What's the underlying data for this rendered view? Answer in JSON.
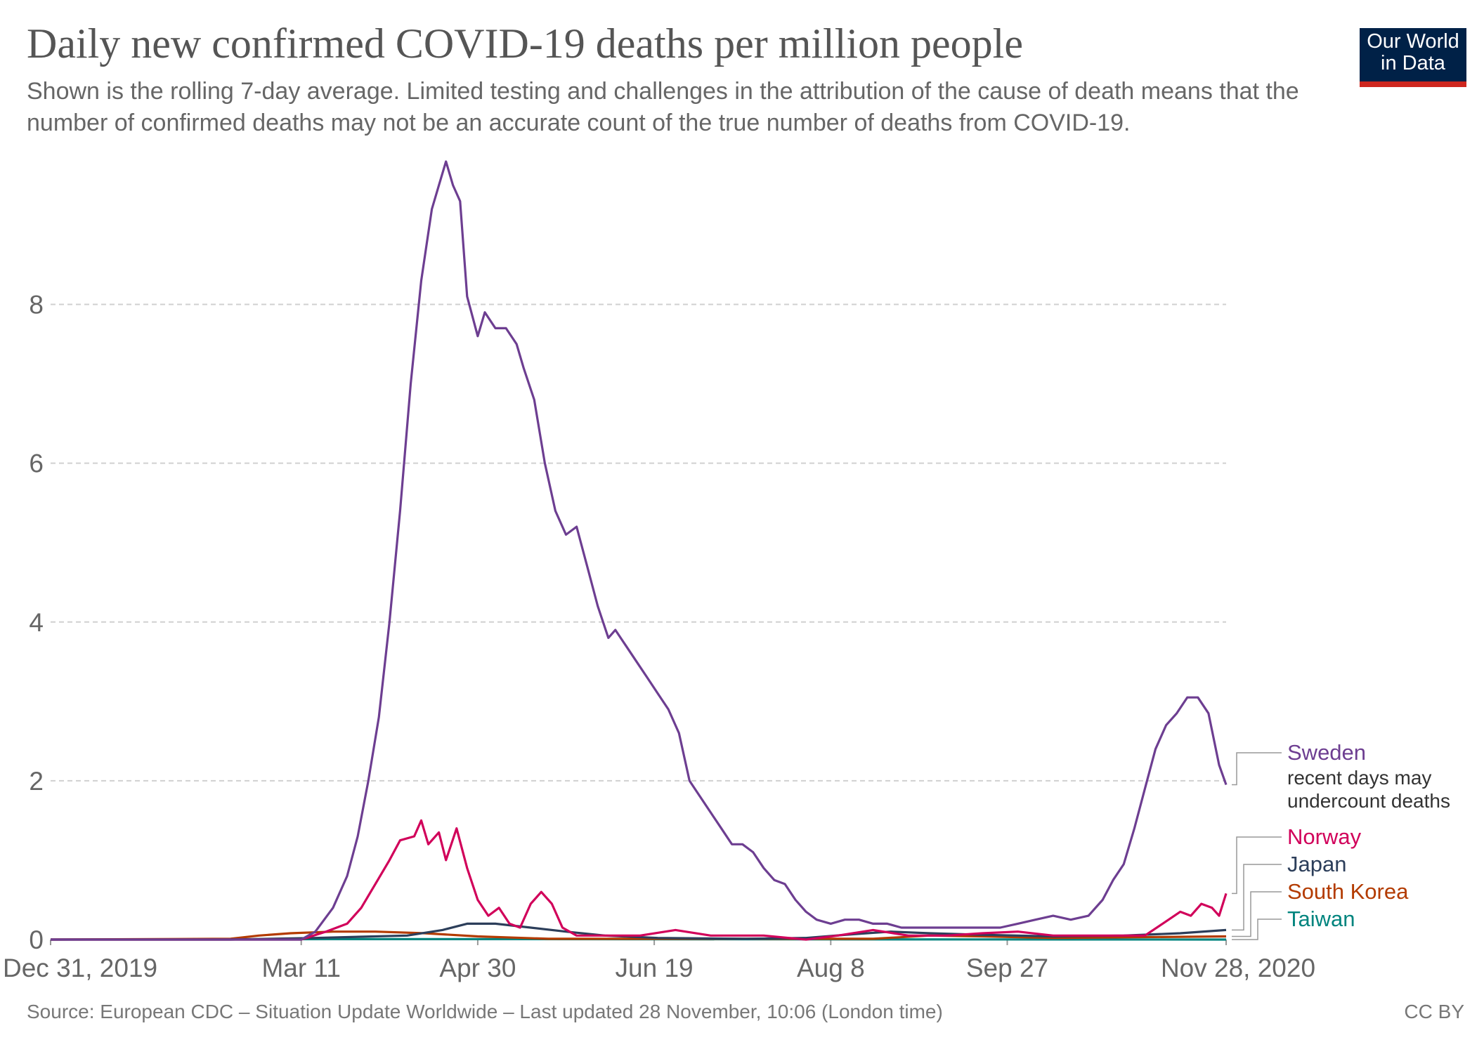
{
  "header": {
    "title": "Daily new confirmed COVID-19 deaths per million people",
    "subtitle": "Shown is the rolling 7-day average. Limited testing and challenges in the attribution of the cause of death means that the number of confirmed deaths may not be an accurate count of the true number of deaths from COVID-19.",
    "logo_line1": "Our World",
    "logo_line2": "in Data"
  },
  "footer": {
    "source": "Source: European CDC – Situation Update Worldwide – Last updated 28 November, 10:06 (London time)",
    "license": "CC BY"
  },
  "colors": {
    "Sweden": "#6d3e91",
    "Norway": "#d1005a",
    "Japan": "#2c3e5a",
    "South Korea": "#b33b00",
    "Taiwan": "#00847e",
    "grid": "#d0d0d0",
    "logo_bg": "#002147",
    "logo_bar": "#ce261e"
  },
  "chart_data": {
    "type": "line",
    "title": "Daily new confirmed COVID-19 deaths per million people",
    "xlabel": "",
    "ylabel": "",
    "x_range": [
      "2019-12-31",
      "2020-11-28"
    ],
    "ylim": [
      0,
      9.8
    ],
    "y_ticks": [
      0,
      2,
      4,
      6,
      8
    ],
    "x_tick_labels": [
      "Dec 31, 2019",
      "Mar 11",
      "Apr 30",
      "Jun 19",
      "Aug 8",
      "Sep 27",
      "Nov 28, 2020"
    ],
    "x_tick_dates": [
      "2019-12-31",
      "2020-03-11",
      "2020-04-30",
      "2020-06-19",
      "2020-08-08",
      "2020-09-27",
      "2020-11-28"
    ],
    "grid": true,
    "legend_placement": "right, line-end labels",
    "series": [
      {
        "name": "Sweden",
        "label_note": "recent days may undercount deaths",
        "points": [
          [
            "2019-12-31",
            0
          ],
          [
            "2020-03-11",
            0
          ],
          [
            "2020-03-15",
            0.1
          ],
          [
            "2020-03-20",
            0.4
          ],
          [
            "2020-03-24",
            0.8
          ],
          [
            "2020-03-27",
            1.3
          ],
          [
            "2020-03-30",
            2.0
          ],
          [
            "2020-04-02",
            2.8
          ],
          [
            "2020-04-05",
            4.0
          ],
          [
            "2020-04-08",
            5.4
          ],
          [
            "2020-04-11",
            7.0
          ],
          [
            "2020-04-14",
            8.3
          ],
          [
            "2020-04-17",
            9.2
          ],
          [
            "2020-04-19",
            9.5
          ],
          [
            "2020-04-21",
            9.8
          ],
          [
            "2020-04-23",
            9.5
          ],
          [
            "2020-04-25",
            9.3
          ],
          [
            "2020-04-27",
            8.1
          ],
          [
            "2020-04-30",
            7.6
          ],
          [
            "2020-05-02",
            7.9
          ],
          [
            "2020-05-05",
            7.7
          ],
          [
            "2020-05-08",
            7.7
          ],
          [
            "2020-05-11",
            7.5
          ],
          [
            "2020-05-13",
            7.2
          ],
          [
            "2020-05-16",
            6.8
          ],
          [
            "2020-05-19",
            6.0
          ],
          [
            "2020-05-22",
            5.4
          ],
          [
            "2020-05-25",
            5.1
          ],
          [
            "2020-05-28",
            5.2
          ],
          [
            "2020-05-31",
            4.7
          ],
          [
            "2020-06-03",
            4.2
          ],
          [
            "2020-06-06",
            3.8
          ],
          [
            "2020-06-08",
            3.9
          ],
          [
            "2020-06-11",
            3.7
          ],
          [
            "2020-06-14",
            3.5
          ],
          [
            "2020-06-17",
            3.3
          ],
          [
            "2020-06-20",
            3.1
          ],
          [
            "2020-06-23",
            2.9
          ],
          [
            "2020-06-26",
            2.6
          ],
          [
            "2020-06-29",
            2.0
          ],
          [
            "2020-07-02",
            1.8
          ],
          [
            "2020-07-05",
            1.6
          ],
          [
            "2020-07-08",
            1.4
          ],
          [
            "2020-07-11",
            1.2
          ],
          [
            "2020-07-14",
            1.2
          ],
          [
            "2020-07-17",
            1.1
          ],
          [
            "2020-07-20",
            0.9
          ],
          [
            "2020-07-23",
            0.75
          ],
          [
            "2020-07-26",
            0.7
          ],
          [
            "2020-07-29",
            0.5
          ],
          [
            "2020-08-01",
            0.35
          ],
          [
            "2020-08-04",
            0.25
          ],
          [
            "2020-08-08",
            0.2
          ],
          [
            "2020-08-12",
            0.25
          ],
          [
            "2020-08-16",
            0.25
          ],
          [
            "2020-08-20",
            0.2
          ],
          [
            "2020-08-24",
            0.2
          ],
          [
            "2020-08-28",
            0.15
          ],
          [
            "2020-09-01",
            0.15
          ],
          [
            "2020-09-05",
            0.15
          ],
          [
            "2020-09-10",
            0.15
          ],
          [
            "2020-09-15",
            0.15
          ],
          [
            "2020-09-20",
            0.15
          ],
          [
            "2020-09-25",
            0.15
          ],
          [
            "2020-09-30",
            0.2
          ],
          [
            "2020-10-05",
            0.25
          ],
          [
            "2020-10-10",
            0.3
          ],
          [
            "2020-10-15",
            0.25
          ],
          [
            "2020-10-20",
            0.3
          ],
          [
            "2020-10-24",
            0.5
          ],
          [
            "2020-10-27",
            0.75
          ],
          [
            "2020-10-30",
            0.95
          ],
          [
            "2020-11-02",
            1.4
          ],
          [
            "2020-11-05",
            1.9
          ],
          [
            "2020-11-08",
            2.4
          ],
          [
            "2020-11-11",
            2.7
          ],
          [
            "2020-11-14",
            2.85
          ],
          [
            "2020-11-17",
            3.05
          ],
          [
            "2020-11-20",
            3.05
          ],
          [
            "2020-11-23",
            2.85
          ],
          [
            "2020-11-26",
            2.2
          ],
          [
            "2020-11-28",
            1.95
          ]
        ]
      },
      {
        "name": "Norway",
        "points": [
          [
            "2019-12-31",
            0
          ],
          [
            "2020-03-11",
            0
          ],
          [
            "2020-03-18",
            0.1
          ],
          [
            "2020-03-24",
            0.2
          ],
          [
            "2020-03-28",
            0.4
          ],
          [
            "2020-04-01",
            0.7
          ],
          [
            "2020-04-05",
            1.0
          ],
          [
            "2020-04-08",
            1.25
          ],
          [
            "2020-04-12",
            1.3
          ],
          [
            "2020-04-14",
            1.5
          ],
          [
            "2020-04-16",
            1.2
          ],
          [
            "2020-04-19",
            1.35
          ],
          [
            "2020-04-21",
            1.0
          ],
          [
            "2020-04-24",
            1.4
          ],
          [
            "2020-04-27",
            0.9
          ],
          [
            "2020-04-30",
            0.5
          ],
          [
            "2020-05-03",
            0.3
          ],
          [
            "2020-05-06",
            0.4
          ],
          [
            "2020-05-09",
            0.2
          ],
          [
            "2020-05-12",
            0.15
          ],
          [
            "2020-05-15",
            0.45
          ],
          [
            "2020-05-18",
            0.6
          ],
          [
            "2020-05-21",
            0.45
          ],
          [
            "2020-05-24",
            0.15
          ],
          [
            "2020-05-28",
            0.05
          ],
          [
            "2020-06-05",
            0.05
          ],
          [
            "2020-06-15",
            0.05
          ],
          [
            "2020-06-25",
            0.12
          ],
          [
            "2020-07-05",
            0.05
          ],
          [
            "2020-07-20",
            0.05
          ],
          [
            "2020-08-01",
            0
          ],
          [
            "2020-08-10",
            0.05
          ],
          [
            "2020-08-20",
            0.12
          ],
          [
            "2020-08-30",
            0.05
          ],
          [
            "2020-09-10",
            0.05
          ],
          [
            "2020-09-20",
            0.08
          ],
          [
            "2020-09-30",
            0.1
          ],
          [
            "2020-10-10",
            0.05
          ],
          [
            "2020-10-25",
            0.05
          ],
          [
            "2020-11-05",
            0.05
          ],
          [
            "2020-11-10",
            0.2
          ],
          [
            "2020-11-15",
            0.35
          ],
          [
            "2020-11-18",
            0.3
          ],
          [
            "2020-11-21",
            0.45
          ],
          [
            "2020-11-24",
            0.4
          ],
          [
            "2020-11-26",
            0.3
          ],
          [
            "2020-11-28",
            0.58
          ]
        ]
      },
      {
        "name": "Japan",
        "points": [
          [
            "2019-12-31",
            0
          ],
          [
            "2020-02-20",
            0
          ],
          [
            "2020-03-15",
            0.02
          ],
          [
            "2020-04-10",
            0.05
          ],
          [
            "2020-04-20",
            0.12
          ],
          [
            "2020-04-27",
            0.2
          ],
          [
            "2020-05-05",
            0.2
          ],
          [
            "2020-05-15",
            0.15
          ],
          [
            "2020-05-25",
            0.1
          ],
          [
            "2020-06-05",
            0.05
          ],
          [
            "2020-06-20",
            0.02
          ],
          [
            "2020-07-15",
            0.01
          ],
          [
            "2020-08-01",
            0.02
          ],
          [
            "2020-08-15",
            0.07
          ],
          [
            "2020-08-25",
            0.1
          ],
          [
            "2020-09-05",
            0.08
          ],
          [
            "2020-09-20",
            0.06
          ],
          [
            "2020-10-10",
            0.04
          ],
          [
            "2020-10-30",
            0.05
          ],
          [
            "2020-11-15",
            0.08
          ],
          [
            "2020-11-28",
            0.12
          ]
        ]
      },
      {
        "name": "South Korea",
        "points": [
          [
            "2019-12-31",
            0
          ],
          [
            "2020-02-20",
            0.01
          ],
          [
            "2020-02-28",
            0.05
          ],
          [
            "2020-03-08",
            0.08
          ],
          [
            "2020-03-20",
            0.1
          ],
          [
            "2020-04-01",
            0.1
          ],
          [
            "2020-04-15",
            0.08
          ],
          [
            "2020-04-30",
            0.04
          ],
          [
            "2020-05-20",
            0.01
          ],
          [
            "2020-06-20",
            0.01
          ],
          [
            "2020-07-20",
            0.01
          ],
          [
            "2020-08-20",
            0.01
          ],
          [
            "2020-09-05",
            0.05
          ],
          [
            "2020-09-20",
            0.04
          ],
          [
            "2020-10-10",
            0.02
          ],
          [
            "2020-11-28",
            0.04
          ]
        ]
      },
      {
        "name": "Taiwan",
        "points": [
          [
            "2019-12-31",
            0
          ],
          [
            "2020-03-20",
            0.005
          ],
          [
            "2020-05-01",
            0.005
          ],
          [
            "2020-11-28",
            0
          ]
        ]
      }
    ]
  }
}
